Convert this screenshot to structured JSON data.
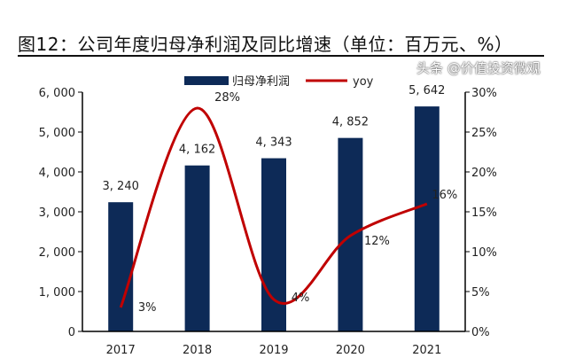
{
  "title": "图12：公司年度归母净利润及同比增速（单位：百万元、%）",
  "watermark": "头条 @价值投资微观",
  "chart_data": {
    "type": "bar+line",
    "categories": [
      "2017",
      "2018",
      "2019",
      "2020",
      "2021"
    ],
    "series": [
      {
        "name": "归母净利润",
        "type": "bar",
        "axis": "left",
        "color": "#0d2a57",
        "values": [
          3240,
          4162,
          4343,
          4852,
          5642
        ],
        "labels": [
          "3, 240",
          "4, 162",
          "4, 343",
          "4, 852",
          "5, 642"
        ]
      },
      {
        "name": "yoy",
        "type": "line",
        "axis": "right",
        "color": "#c00000",
        "smooth": true,
        "values": [
          3,
          28,
          4,
          12,
          16
        ],
        "labels": [
          "3%",
          "28%",
          "4%",
          "12%",
          "16%"
        ]
      }
    ],
    "left_axis": {
      "range": [
        0,
        6000
      ],
      "ticks": [
        "0",
        "1, 000",
        "2, 000",
        "3, 000",
        "4, 000",
        "5, 000",
        "6, 000"
      ]
    },
    "right_axis": {
      "range": [
        0,
        30
      ],
      "ticks": [
        "0%",
        "5%",
        "10%",
        "15%",
        "20%",
        "25%",
        "30%"
      ]
    },
    "legend": "top-center",
    "grid": false
  }
}
